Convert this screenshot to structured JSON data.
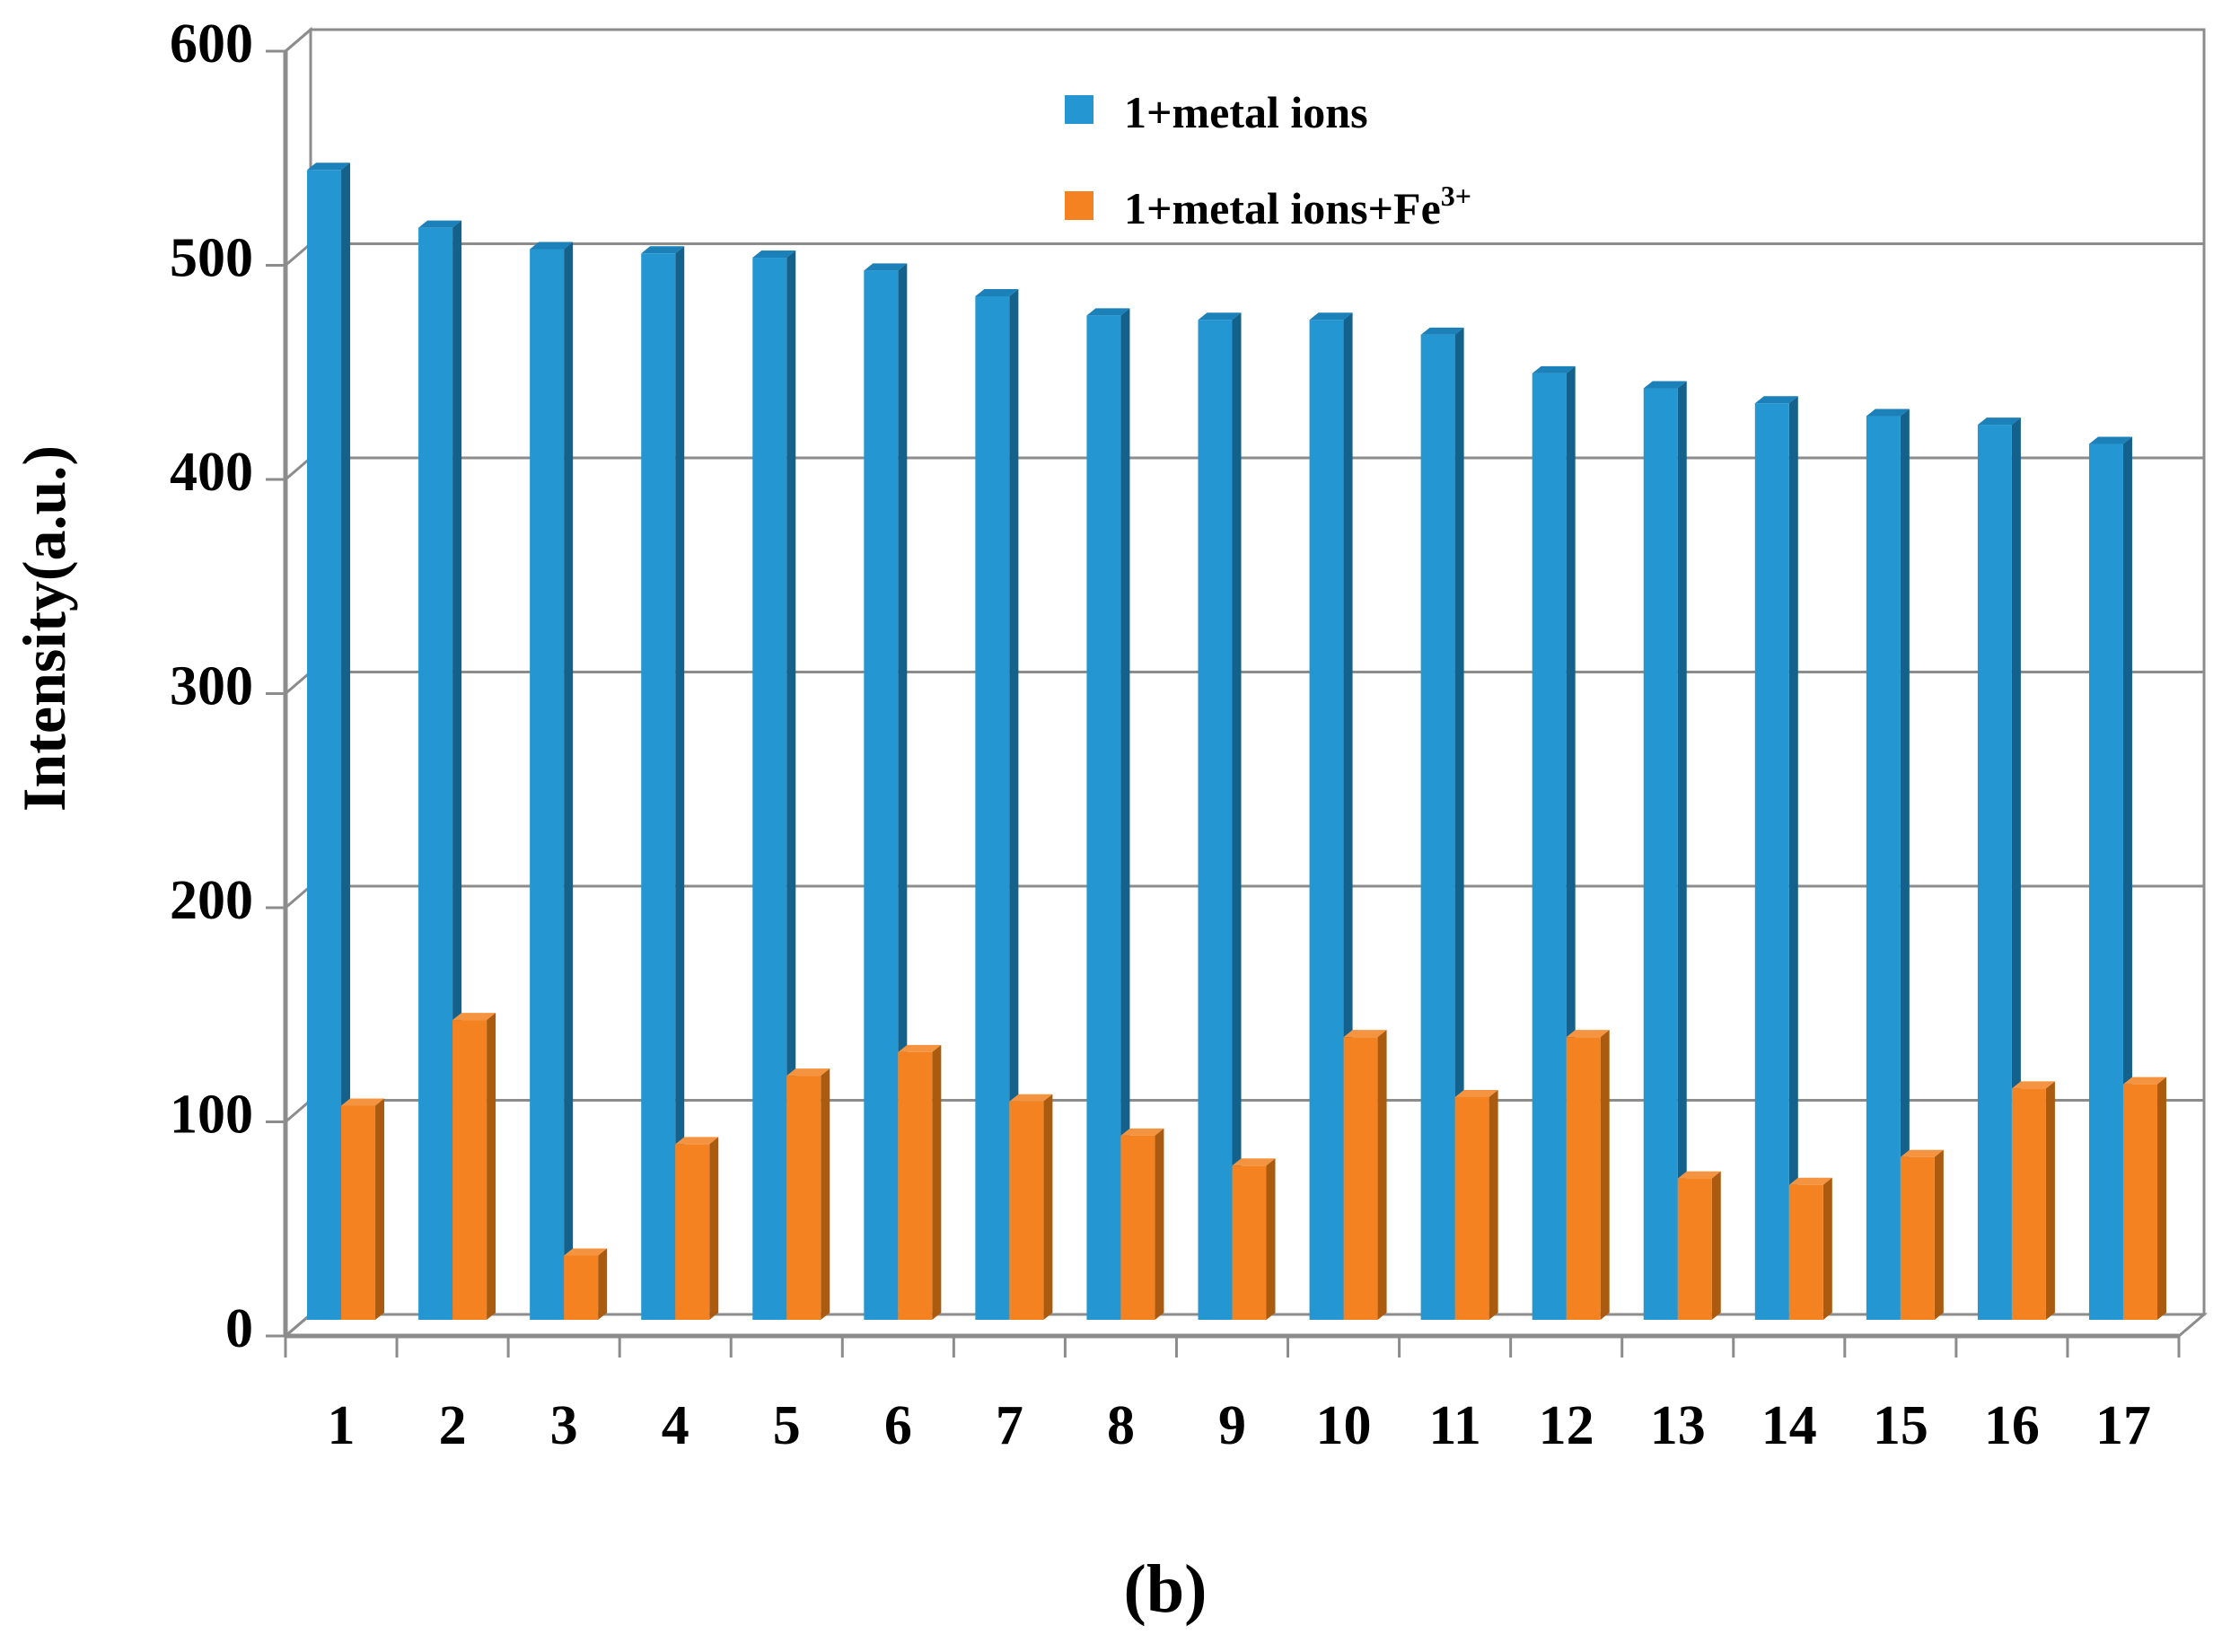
{
  "figure": {
    "caption": "(b)"
  },
  "chart_data": {
    "type": "bar",
    "style": "3d-clustered-column",
    "title": "",
    "xlabel": "",
    "ylabel": "Intensity(a.u.)",
    "ylim": [
      0,
      600
    ],
    "ytick_labels": [
      "0",
      "100",
      "200",
      "300",
      "400",
      "500",
      "600"
    ],
    "yticks": [
      0,
      100,
      200,
      300,
      400,
      500,
      600
    ],
    "categories": [
      "1",
      "2",
      "3",
      "4",
      "5",
      "6",
      "7",
      "8",
      "9",
      "10",
      "11",
      "12",
      "13",
      "14",
      "15",
      "16",
      "17"
    ],
    "grid": true,
    "legend_position": "top-center-right",
    "axis_color": "#8c8c8c",
    "background_color": "#ffffff",
    "series": [
      {
        "name": "1+metal ions",
        "name_sup": "",
        "color": "#2496d2",
        "color_top": "#1b81b8",
        "color_side": "#14618c",
        "values": [
          537,
          510,
          500,
          498,
          496,
          490,
          478,
          469,
          467,
          467,
          460,
          442,
          435,
          428,
          422,
          418,
          409
        ]
      },
      {
        "name": "1+metal ions+Fe",
        "name_sup": "3+",
        "color": "#f58220",
        "color_top": "#f49441",
        "color_side": "#aa5b10",
        "values": [
          100,
          140,
          30,
          82,
          114,
          125,
          102,
          86,
          72,
          132,
          104,
          132,
          66,
          63,
          76,
          108,
          110
        ]
      }
    ]
  }
}
